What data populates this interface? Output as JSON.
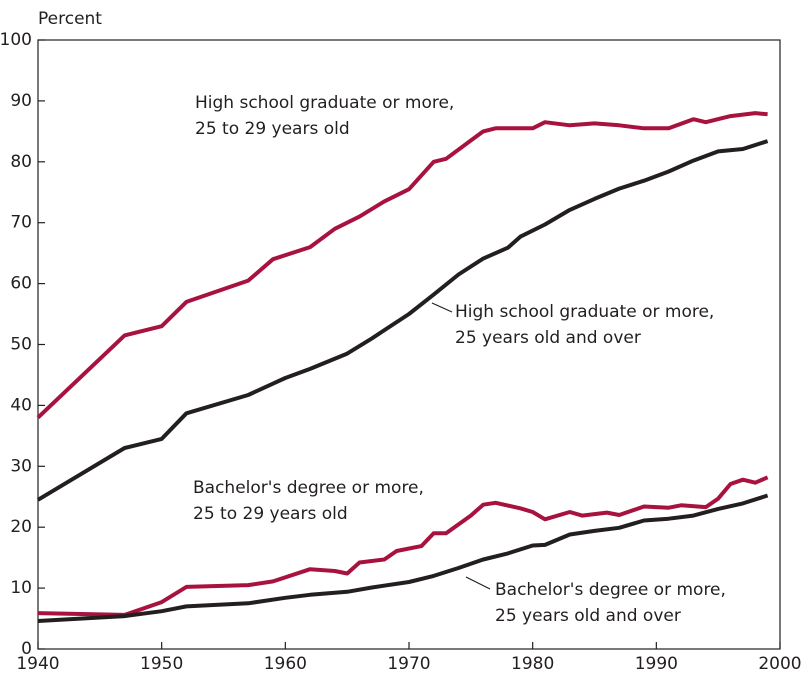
{
  "chart_data": {
    "type": "line",
    "y_axis_label": "Percent",
    "xlim": [
      1940,
      2000
    ],
    "xticks": [
      1940,
      1950,
      1960,
      1970,
      1980,
      1990,
      2000
    ],
    "ylim": [
      0,
      100
    ],
    "yticks": [
      0,
      10,
      20,
      30,
      40,
      50,
      60,
      70,
      80,
      90,
      100
    ],
    "grid": false,
    "series": [
      {
        "name": [
          "High school graduate or more,",
          "25 to 29 years old"
        ],
        "color": "#a8123e",
        "x": [
          1940,
          1947,
          1950,
          1952,
          1957,
          1959,
          1962,
          1964,
          1966,
          1968,
          1970,
          1972,
          1973,
          1975,
          1976,
          1977,
          1980,
          1981,
          1983,
          1985,
          1987,
          1989,
          1991,
          1993,
          1994,
          1996,
          1998,
          1999
        ],
        "values": [
          38,
          51.5,
          53,
          57,
          60.5,
          64,
          66,
          69,
          71,
          73.5,
          75.5,
          80,
          80.5,
          83.5,
          85,
          85.5,
          85.5,
          86.5,
          86,
          86.3,
          86,
          85.5,
          85.5,
          87,
          86.5,
          87.5,
          88,
          87.8
        ]
      },
      {
        "name": [
          "High school graduate or more,",
          "25 years old and over"
        ],
        "color": "#231f20",
        "x": [
          1940,
          1947,
          1950,
          1952,
          1957,
          1960,
          1962,
          1965,
          1967,
          1970,
          1972,
          1974,
          1976,
          1978,
          1979,
          1981,
          1983,
          1985,
          1987,
          1989,
          1991,
          1993,
          1995,
          1997,
          1999
        ],
        "values": [
          24.5,
          33,
          34.5,
          38.7,
          41.7,
          44.5,
          46,
          48.5,
          51,
          55,
          58.2,
          61.5,
          64.1,
          65.9,
          67.7,
          69.7,
          72.1,
          73.9,
          75.6,
          76.9,
          78.4,
          80.2,
          81.7,
          82.1,
          83.4
        ]
      },
      {
        "name": [
          "Bachelor's degree or more,",
          "25 to 29 years old"
        ],
        "color": "#a8123e",
        "x": [
          1940,
          1947,
          1950,
          1952,
          1957,
          1959,
          1962,
          1964,
          1965,
          1966,
          1968,
          1969,
          1971,
          1972,
          1973,
          1975,
          1976,
          1977,
          1979,
          1980,
          1981,
          1983,
          1984,
          1986,
          1987,
          1989,
          1991,
          1992,
          1994,
          1995,
          1996,
          1997,
          1998,
          1999
        ],
        "values": [
          5.9,
          5.6,
          7.7,
          10.2,
          10.5,
          11.1,
          13.1,
          12.8,
          12.4,
          14.2,
          14.7,
          16.1,
          16.9,
          19,
          19,
          21.9,
          23.7,
          24,
          23.1,
          22.5,
          21.3,
          22.5,
          21.9,
          22.4,
          22,
          23.4,
          23.2,
          23.6,
          23.3,
          24.7,
          27.1,
          27.8,
          27.3,
          28.2
        ]
      },
      {
        "name": [
          "Bachelor's degree or more,",
          "25 years old and over"
        ],
        "color": "#231f20",
        "x": [
          1940,
          1947,
          1950,
          1952,
          1957,
          1960,
          1962,
          1965,
          1967,
          1970,
          1972,
          1974,
          1976,
          1978,
          1980,
          1981,
          1983,
          1985,
          1987,
          1989,
          1991,
          1993,
          1995,
          1997,
          1999
        ],
        "values": [
          4.6,
          5.4,
          6.2,
          7,
          7.5,
          8.4,
          8.9,
          9.4,
          10.1,
          11,
          12,
          13.3,
          14.7,
          15.7,
          17,
          17.1,
          18.8,
          19.4,
          19.9,
          21.1,
          21.4,
          21.9,
          23,
          23.9,
          25.2
        ]
      }
    ]
  }
}
